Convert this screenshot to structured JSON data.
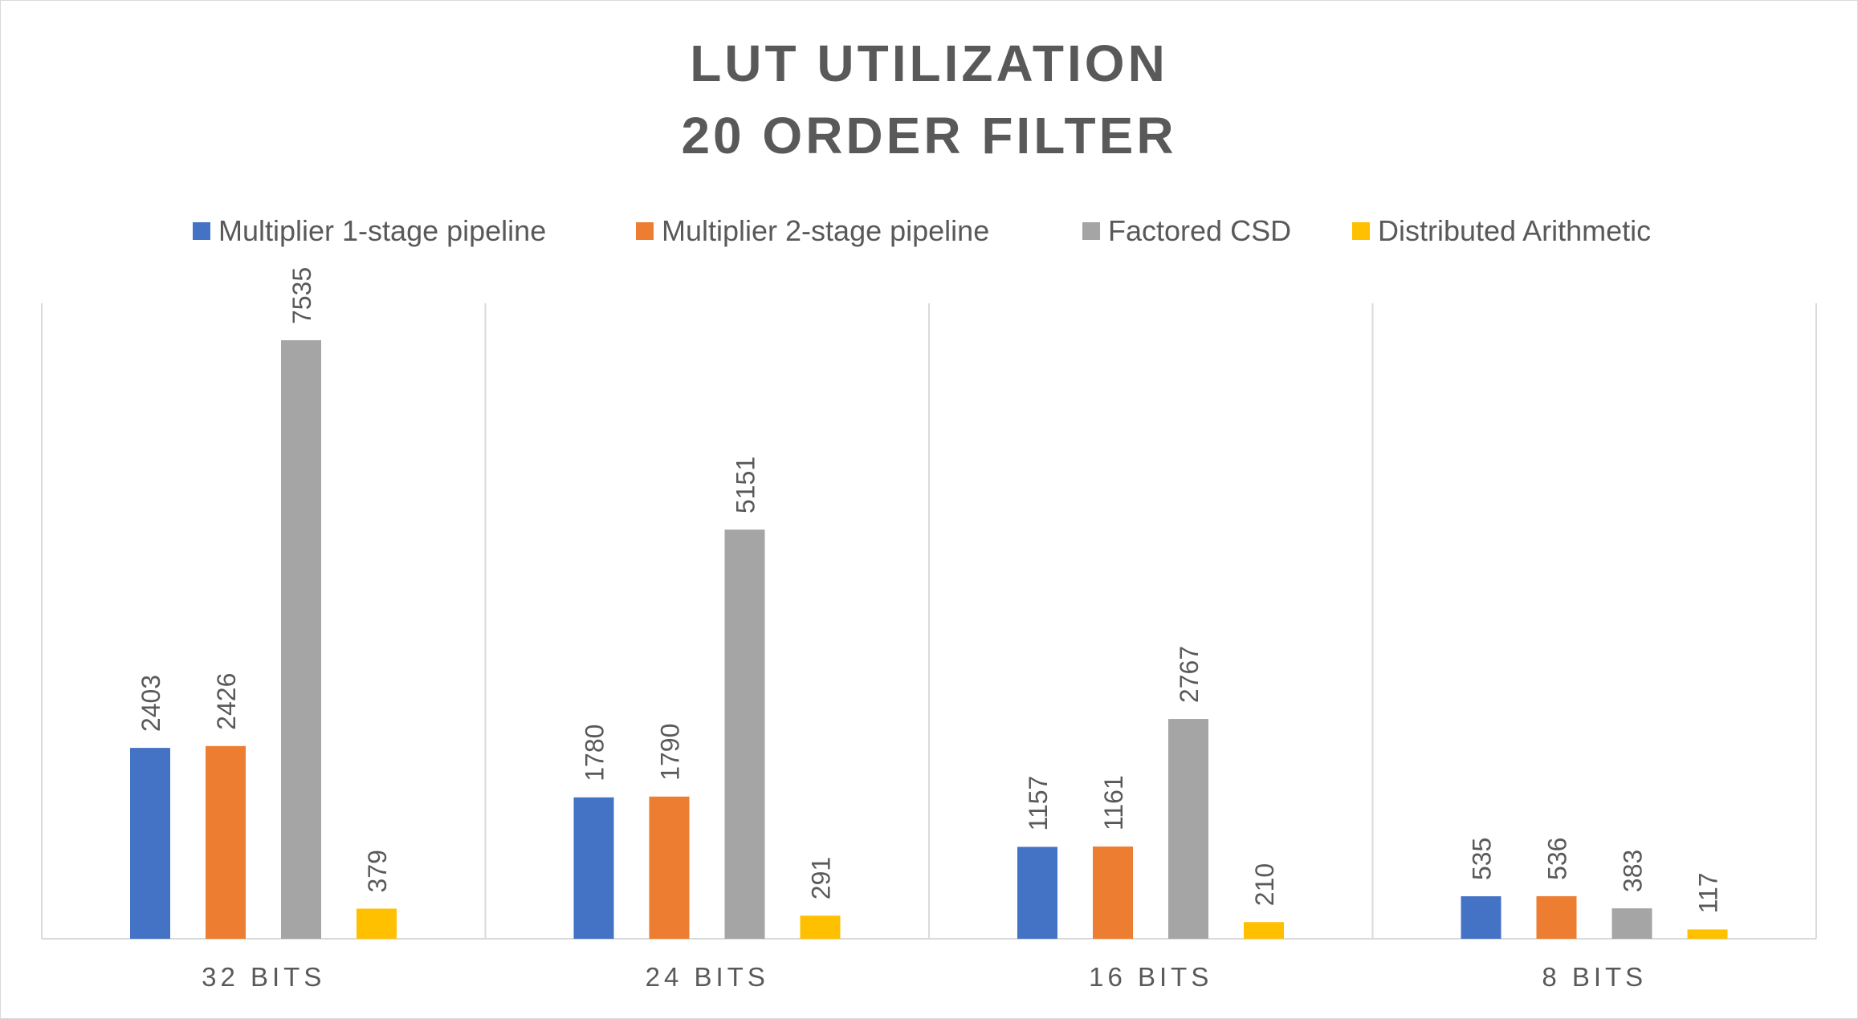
{
  "chart_data": {
    "type": "bar",
    "title": "LUT UTILIZATION",
    "subtitle": "20 ORDER FILTER",
    "categories": [
      "32 BITS",
      "24 BITS",
      "16 BITS",
      "8 BITS"
    ],
    "series": [
      {
        "name": "Multiplier 1-stage pipeline",
        "color": "#4472C4",
        "values": [
          2403,
          1780,
          1157,
          535
        ]
      },
      {
        "name": "Multiplier 2-stage pipeline",
        "color": "#ED7D31",
        "values": [
          2426,
          1790,
          1161,
          536
        ]
      },
      {
        "name": "Factored CSD",
        "color": "#A5A5A5",
        "values": [
          7535,
          5151,
          2767,
          383
        ]
      },
      {
        "name": "Distributed Arithmetic",
        "color": "#FFC000",
        "values": [
          379,
          291,
          210,
          117
        ]
      }
    ],
    "ylim": [
      0,
      8000
    ],
    "data_labels": true,
    "legend": "top",
    "grid": "vertical category separators"
  }
}
